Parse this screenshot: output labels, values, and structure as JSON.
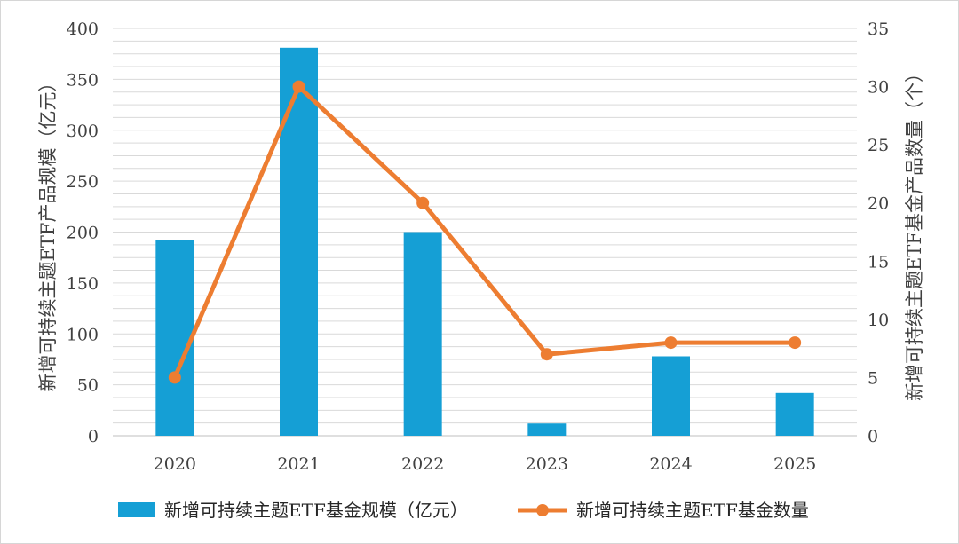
{
  "chart_data": {
    "type": "bar+line",
    "categories": [
      "2020",
      "2021",
      "2022",
      "2023",
      "2024",
      "2025"
    ],
    "series": [
      {
        "name": "新增可持续主题ETF基金规模（亿元）",
        "type": "bar",
        "axis": "left",
        "color": "#159FD5",
        "values": [
          192,
          381,
          200,
          12,
          78,
          42
        ]
      },
      {
        "name": "新增可持续主题ETF基金数量",
        "type": "line",
        "axis": "right",
        "color": "#ED7D31",
        "values": [
          5,
          30,
          20,
          7,
          8,
          8
        ]
      }
    ],
    "y_left": {
      "label": "新增可持续主题ETF产品规模（亿元）",
      "ylim": [
        0,
        400
      ],
      "ticks": [
        "0",
        "50",
        "100",
        "150",
        "200",
        "250",
        "300",
        "350",
        "400"
      ]
    },
    "y_right": {
      "label": "新增可持续主题ETF基金产品数量（个）",
      "ylim": [
        0,
        35
      ],
      "ticks": [
        "0",
        "5",
        "10",
        "15",
        "20",
        "25",
        "30",
        "35"
      ]
    },
    "grid": true,
    "legend": "bottom-center"
  }
}
